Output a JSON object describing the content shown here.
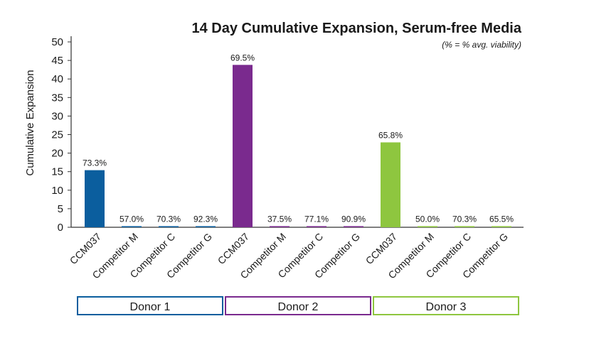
{
  "chart_data": {
    "type": "bar",
    "title": "14 Day Cumulative Expansion, Serum-free Media",
    "subtitle": "(% = % avg. viability)",
    "ylabel": "Cumulative Expansion",
    "ylim": [
      0,
      50
    ],
    "yticks": [
      "0",
      "5",
      "10",
      "15",
      "20",
      "25",
      "30",
      "35",
      "40",
      "45",
      "50"
    ],
    "grid": false,
    "bars": [
      {
        "category": "CCM037",
        "group": "Donor 1",
        "value": 15.4,
        "label": "73.3%"
      },
      {
        "category": "Competitor M",
        "group": "Donor 1",
        "value": 0.3,
        "label": "57.0%"
      },
      {
        "category": "Competitor C",
        "group": "Donor 1",
        "value": 0.3,
        "label": "70.3%"
      },
      {
        "category": "Competitor G",
        "group": "Donor 1",
        "value": 0.3,
        "label": "92.3%"
      },
      {
        "category": "CCM037",
        "group": "Donor 2",
        "value": 43.8,
        "label": "69.5%"
      },
      {
        "category": "Competitor M",
        "group": "Donor 2",
        "value": 0.3,
        "label": "37.5%"
      },
      {
        "category": "Competitor C",
        "group": "Donor 2",
        "value": 0.3,
        "label": "77.1%"
      },
      {
        "category": "Competitor G",
        "group": "Donor 2",
        "value": 0.3,
        "label": "90.9%"
      },
      {
        "category": "CCM037",
        "group": "Donor 3",
        "value": 22.9,
        "label": "65.8%"
      },
      {
        "category": "Competitor M",
        "group": "Donor 3",
        "value": 0.3,
        "label": "50.0%"
      },
      {
        "category": "Competitor C",
        "group": "Donor 3",
        "value": 0.3,
        "label": "70.3%"
      },
      {
        "category": "Competitor G",
        "group": "Donor 3",
        "value": 0.3,
        "label": "65.5%"
      }
    ],
    "groups": [
      {
        "name": "Donor 1",
        "color": "#0b5e9e"
      },
      {
        "name": "Donor 2",
        "color": "#7a2a8e"
      },
      {
        "name": "Donor 3",
        "color": "#8ec63f"
      }
    ]
  }
}
